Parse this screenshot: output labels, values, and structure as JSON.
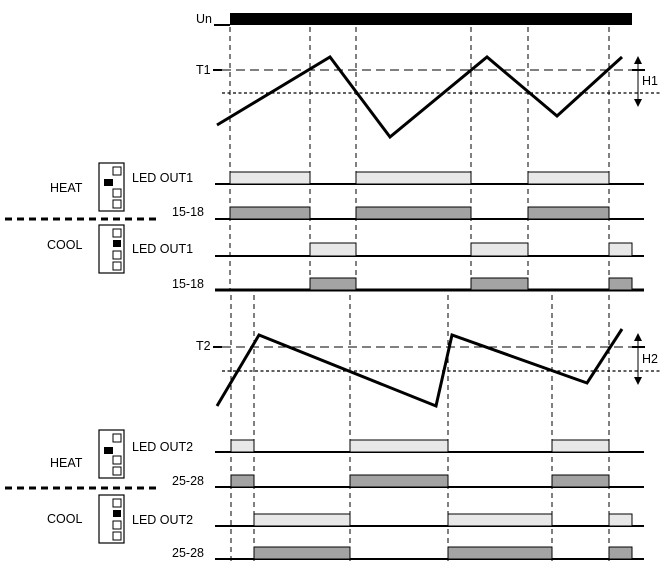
{
  "labels": {
    "un": "Un",
    "t1": "T1",
    "h1": "H1",
    "t2": "T2",
    "h2": "H2",
    "heat": "HEAT",
    "cool": "COOL",
    "led_out1": "LED OUT1",
    "led_out2": "LED OUT2",
    "relay1": "15-18",
    "relay2": "25-28"
  },
  "colors": {
    "led_fill": "#e8e8e8",
    "relay_fill": "#a3a3a3",
    "line": "#000000"
  },
  "switch_icons": [
    {
      "mode": "heat",
      "selected_position": 2
    },
    {
      "mode": "cool",
      "selected_position": 2
    },
    {
      "mode": "heat",
      "selected_position": 2
    },
    {
      "mode": "cool",
      "selected_position": 2
    }
  ]
}
